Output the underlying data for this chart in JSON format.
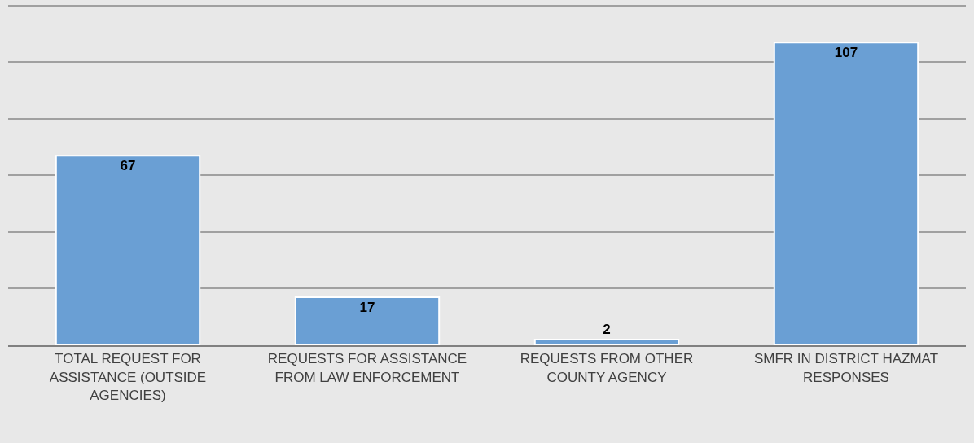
{
  "chart_data": {
    "type": "bar",
    "categories": [
      "TOTAL REQUEST FOR ASSISTANCE (OUTSIDE AGENCIES)",
      "REQUESTS FOR ASSISTANCE FROM LAW ENFORCEMENT",
      "REQUESTS FROM OTHER COUNTY AGENCY",
      "SMFR IN DISTRICT HAZMAT RESPONSES"
    ],
    "values": [
      67,
      17,
      2,
      107
    ],
    "color": "#6a9fd4",
    "data_labels": true,
    "ylim": [
      0,
      122
    ],
    "yticks": [
      {
        "value": 0,
        "label": null
      },
      {
        "value": 20,
        "label": null
      },
      {
        "value": 40,
        "label": null
      },
      {
        "value": 60,
        "label": null
      },
      {
        "value": 80,
        "label": null
      },
      {
        "value": 100,
        "label": null
      },
      {
        "value": 120,
        "label": null
      }
    ],
    "grid": "y",
    "tick_labels": "x"
  }
}
